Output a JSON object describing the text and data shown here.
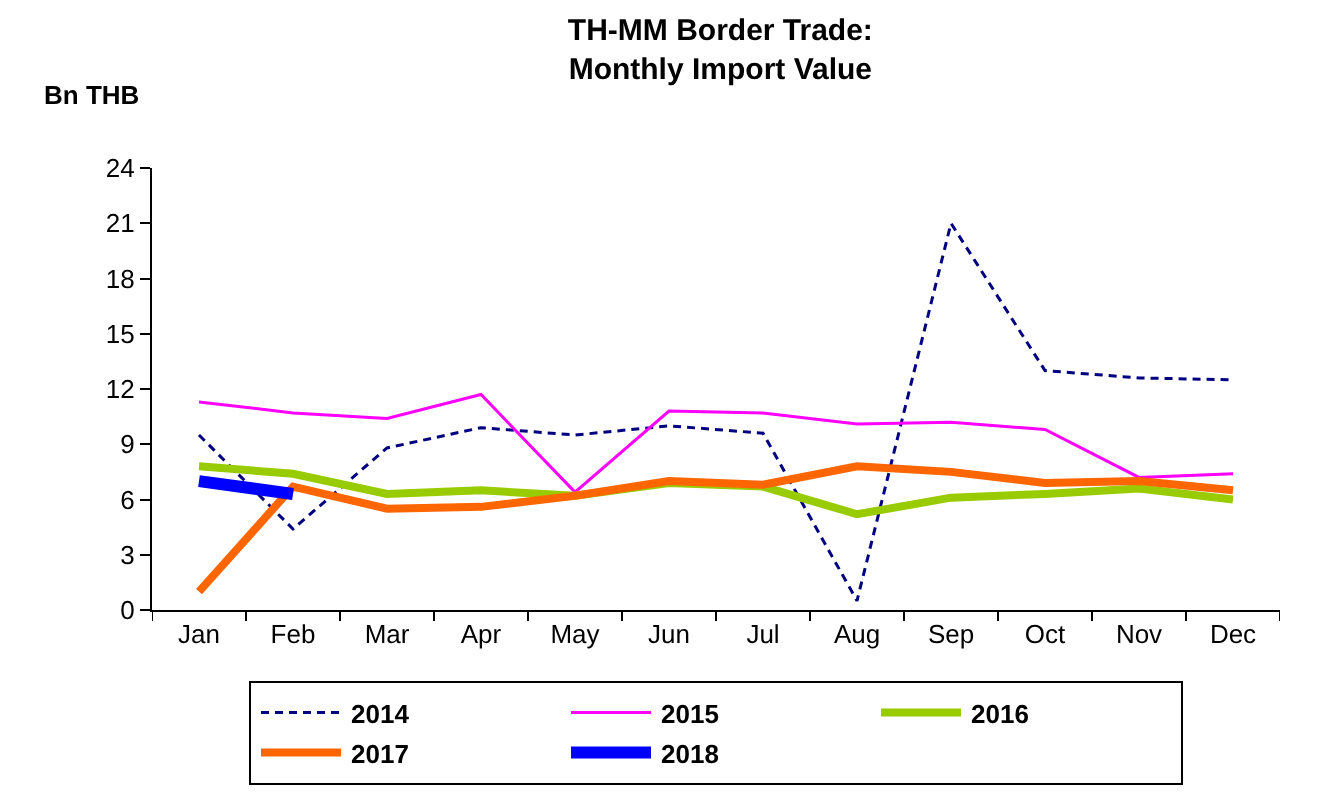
{
  "chart_data": {
    "type": "line",
    "title": "TH-MM Border Trade:\nMonthly Import Value",
    "ylabel": "Bn THB",
    "categories": [
      "Jan",
      "Feb",
      "Mar",
      "Apr",
      "May",
      "Jun",
      "Jul",
      "Aug",
      "Sep",
      "Oct",
      "Nov",
      "Dec"
    ],
    "ylim": [
      0,
      24
    ],
    "yticks": [
      0,
      3,
      6,
      9,
      12,
      15,
      18,
      21,
      24
    ],
    "grid": false,
    "legend": "bottom",
    "marker": "none",
    "series": [
      {
        "name": "2014",
        "color": "#000080",
        "line_style": "dashed",
        "values": [
          9.5,
          4.4,
          8.8,
          9.9,
          9.5,
          10.0,
          9.6,
          0.5,
          21.0,
          13.0,
          12.6,
          12.5
        ]
      },
      {
        "name": "2015",
        "color": "#ff00ff",
        "values": [
          11.3,
          10.7,
          10.4,
          11.7,
          6.4,
          10.8,
          10.7,
          10.1,
          10.2,
          9.8,
          7.2,
          7.4
        ]
      },
      {
        "name": "2016",
        "color": "#99cc00",
        "values": [
          7.8,
          7.4,
          6.3,
          6.5,
          6.2,
          6.9,
          6.7,
          5.2,
          6.1,
          6.3,
          6.6,
          6.0
        ]
      },
      {
        "name": "2017",
        "color": "#ff6600",
        "values": [
          1.0,
          6.7,
          5.5,
          5.6,
          6.2,
          7.0,
          6.8,
          7.8,
          7.5,
          6.9,
          7.0,
          6.5
        ]
      },
      {
        "name": "2018",
        "color": "#0000ff",
        "values": [
          7.0,
          6.3,
          null,
          null,
          null,
          null,
          null,
          null,
          null,
          null,
          null,
          null
        ]
      }
    ]
  }
}
